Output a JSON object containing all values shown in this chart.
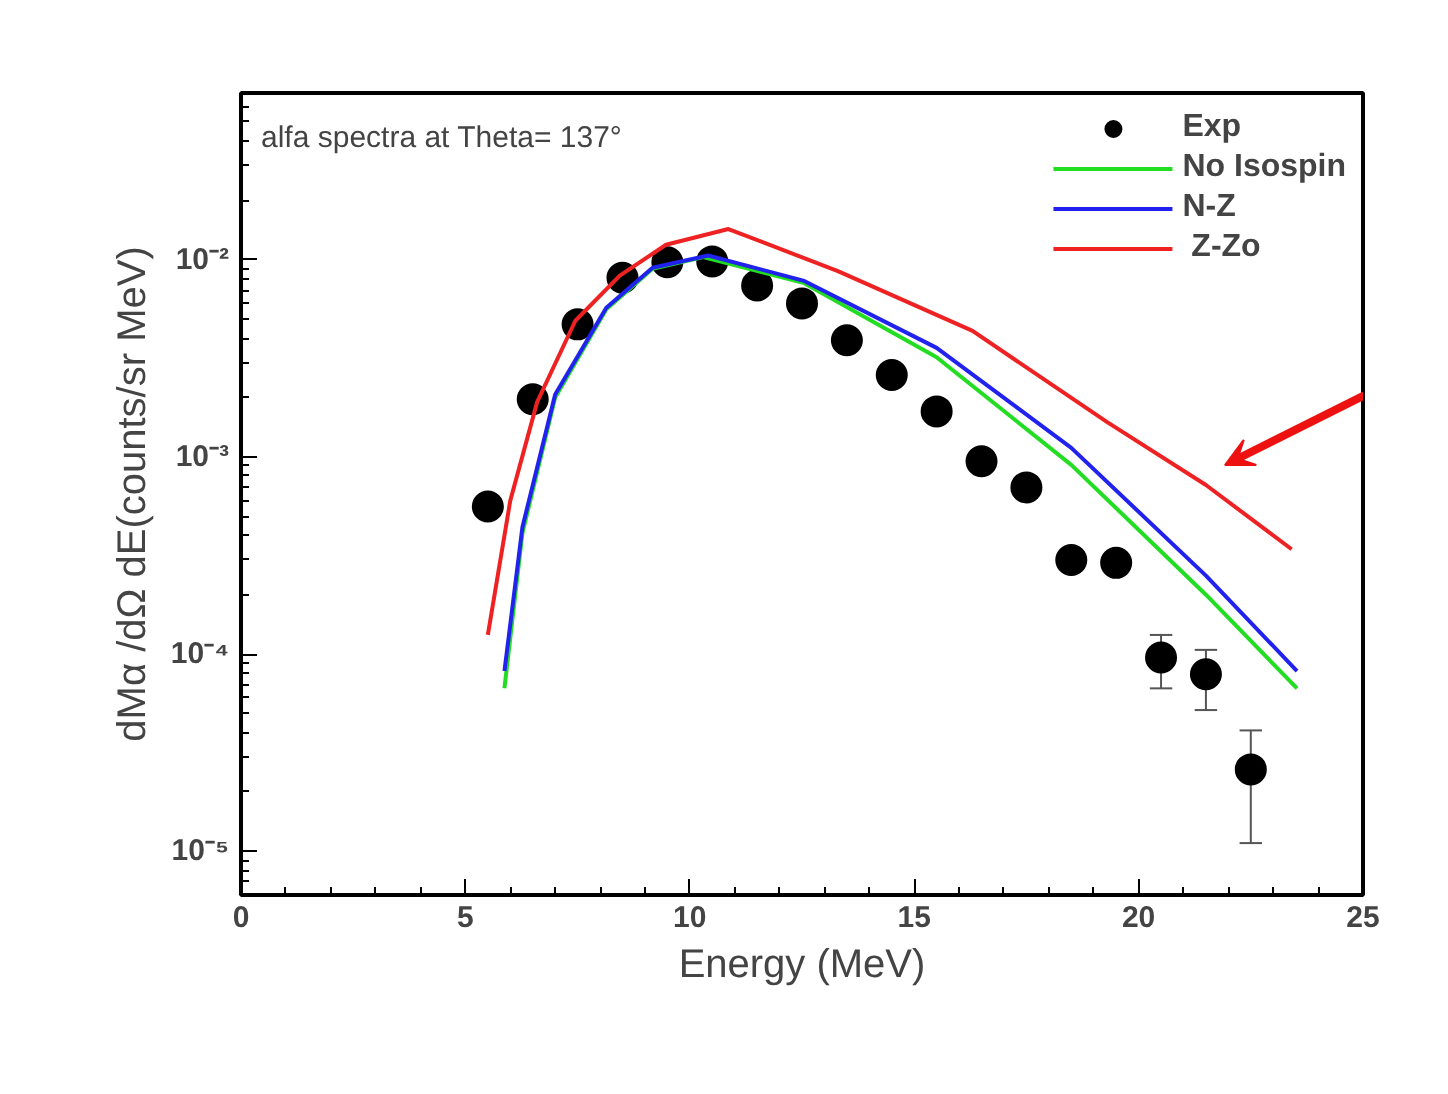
{
  "chart_data": {
    "type": "scatter",
    "title": "alfa spectra at Theta= 137°",
    "xlabel": "Energy (MeV)",
    "ylabel": "dMα /dΩ dE(counts/sr MeV)",
    "log": "y",
    "xlim": [
      0,
      25
    ],
    "xticks": [
      0,
      5,
      10,
      15,
      20,
      25
    ],
    "ylim": [
      6e-06,
      0.07
    ],
    "yticks": [
      {
        "value": 0.01,
        "label": "10⁻²"
      },
      {
        "value": 0.001,
        "label": "10⁻³"
      },
      {
        "value": 0.0001,
        "label": "10⁻⁴"
      },
      {
        "value": 1e-05,
        "label": "10⁻⁵"
      }
    ],
    "grid": false,
    "legend": "top right",
    "series": [
      {
        "name": "Exp",
        "marker": "circle",
        "color": "#000000",
        "x": [
          5.5,
          6.5,
          7.5,
          8.5,
          9.5,
          10.5,
          11.5,
          12.5,
          13.5,
          14.5,
          15.5,
          16.5,
          17.5,
          18.5,
          19.5,
          20.5,
          21.5,
          22.5
        ],
        "values": [
          0.00056,
          0.00196,
          0.0047,
          0.0081,
          0.0097,
          0.0098,
          0.0074,
          0.006,
          0.0039,
          0.0026,
          0.0017,
          0.00095,
          0.0007,
          0.0003,
          0.00029,
          9.6e-05,
          7.9e-05,
          2.6e-05
        ],
        "errors": [
          null,
          null,
          null,
          null,
          null,
          null,
          null,
          null,
          null,
          null,
          null,
          null,
          null,
          null,
          null,
          [
            6.7e-05,
            0.000125
          ],
          [
            5.2e-05,
            0.000105
          ],
          [
            1.1e-05,
            4.1e-05
          ]
        ]
      },
      {
        "name": "No Isospin",
        "type": "line",
        "color": "#22dd22",
        "x": [
          5.87,
          6.27,
          7.0,
          8.14,
          9.17,
          10.3,
          12.55,
          15.5,
          18.5,
          21.5,
          23.53
        ],
        "values": [
          6.7e-05,
          0.00041,
          0.002,
          0.0056,
          0.009,
          0.0103,
          0.0076,
          0.0032,
          0.00091,
          0.0002,
          6.7e-05
        ]
      },
      {
        "name": "N-Z",
        "type": "line",
        "color": "#2222ee",
        "x": [
          5.87,
          6.27,
          7.0,
          8.14,
          9.17,
          10.41,
          12.55,
          15.5,
          18.5,
          21.5,
          23.53
        ],
        "values": [
          8.2e-05,
          0.00044,
          0.00207,
          0.0057,
          0.0091,
          0.0105,
          0.0078,
          0.00357,
          0.00111,
          0.00025,
          8.2e-05
        ]
      },
      {
        "name": " Z-Zo",
        "type": "line",
        "color": "#ee2222",
        "x": [
          5.5,
          6.0,
          6.6,
          7.45,
          8.44,
          9.47,
          10.86,
          13.3,
          16.3,
          19.3,
          21.5,
          23.41
        ],
        "values": [
          0.000125,
          0.0006,
          0.0019,
          0.0049,
          0.0083,
          0.0119,
          0.0143,
          0.00875,
          0.00435,
          0.0015,
          0.00072,
          0.00034
        ]
      }
    ]
  }
}
